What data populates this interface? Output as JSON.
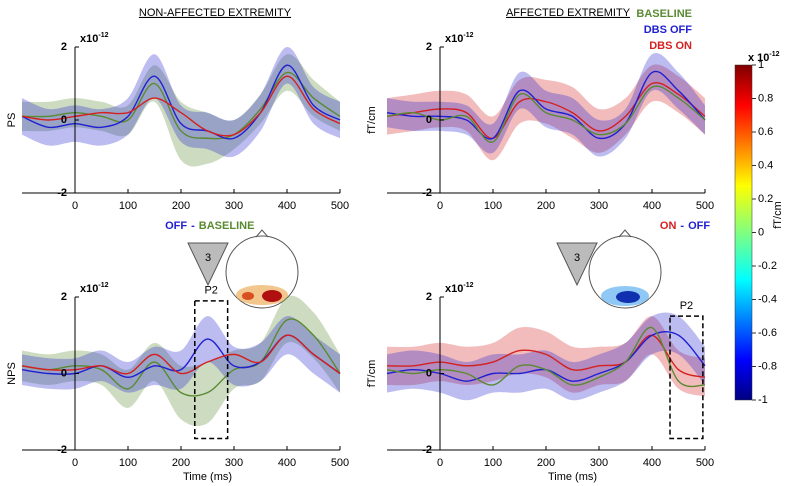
{
  "legend": [
    {
      "name": "BASELINE",
      "color": "#5a8a32"
    },
    {
      "name": "DBS OFF",
      "color": "#2020d0"
    },
    {
      "name": "DBS ON",
      "color": "#d42020"
    }
  ],
  "colorbar": {
    "lim": [
      -1,
      1
    ],
    "ticks": [
      1,
      0.8,
      0.6,
      0.4,
      0.2,
      0,
      -0.2,
      -0.4,
      -0.6,
      -0.8,
      -1
    ],
    "exponent": {
      "base": "x 10",
      "exp": "-12"
    },
    "label": "fT/cm"
  },
  "chart_data": [
    {
      "type": "line",
      "title": "NON-AFFECTED EXTREMITY",
      "row_label": "PS",
      "x": [
        -100,
        -50,
        0,
        50,
        100,
        150,
        200,
        250,
        300,
        350,
        400,
        450,
        500
      ],
      "xlim": [
        -100,
        500
      ],
      "xticks": [
        0,
        100,
        200,
        300,
        400,
        500
      ],
      "ylim": [
        -2,
        2
      ],
      "yticks": [
        -2,
        0,
        2
      ],
      "exponent": {
        "base": "x10",
        "exp": "-12"
      },
      "series": [
        {
          "color": "#5a8a32",
          "values": [
            0.1,
            0.1,
            0.2,
            0.1,
            0.0,
            1.0,
            -0.3,
            -0.5,
            -0.4,
            0.3,
            1.3,
            0.6,
            0.1
          ],
          "lower": [
            -0.3,
            -0.3,
            -0.2,
            -0.3,
            -0.4,
            0.5,
            -1.1,
            -1.2,
            -0.8,
            -0.1,
            0.8,
            0.1,
            -0.3
          ],
          "upper": [
            0.5,
            0.5,
            0.6,
            0.5,
            0.4,
            1.5,
            0.5,
            0.2,
            0.0,
            0.7,
            1.8,
            1.1,
            0.5
          ]
        },
        {
          "color": "#2020d0",
          "values": [
            0.1,
            -0.2,
            -0.1,
            -0.2,
            0.1,
            1.2,
            -0.1,
            -0.3,
            -0.5,
            0.2,
            1.5,
            0.4,
            0.0
          ],
          "lower": [
            -0.4,
            -0.7,
            -0.6,
            -0.7,
            -0.4,
            0.6,
            -0.6,
            -0.8,
            -1.0,
            -0.3,
            1.0,
            -0.1,
            -0.5
          ],
          "upper": [
            0.6,
            0.3,
            0.4,
            0.3,
            0.6,
            1.8,
            0.4,
            0.2,
            0.0,
            0.7,
            2.0,
            0.9,
            0.5
          ]
        },
        {
          "color": "#d42020",
          "values": [
            0.1,
            0.0,
            0.1,
            0.2,
            0.2,
            0.6,
            0.2,
            -0.3,
            -0.4,
            0.2,
            1.2,
            0.3,
            -0.1
          ]
        }
      ]
    },
    {
      "type": "line",
      "title": "AFFECTED EXTREMITY",
      "ylabel": "fT/cm",
      "x": [
        -100,
        -50,
        0,
        50,
        100,
        150,
        200,
        250,
        300,
        350,
        400,
        450,
        500
      ],
      "xlim": [
        -100,
        500
      ],
      "xticks": [
        0,
        100,
        200,
        300,
        400,
        500
      ],
      "ylim": [
        -2,
        2
      ],
      "yticks": [
        -2,
        0,
        2
      ],
      "exponent": {
        "base": "x10",
        "exp": "-12"
      },
      "series": [
        {
          "color": "#d42020",
          "values": [
            0.1,
            0.2,
            0.3,
            0.2,
            -0.5,
            0.5,
            0.5,
            0.2,
            -0.3,
            0.1,
            1.0,
            0.7,
            0.1
          ],
          "lower": [
            -0.4,
            -0.3,
            -0.2,
            -0.3,
            -1.1,
            -0.1,
            -0.1,
            -0.5,
            -0.9,
            -0.4,
            0.5,
            0.2,
            -0.4
          ],
          "upper": [
            0.6,
            0.7,
            0.8,
            0.7,
            0.1,
            1.1,
            1.1,
            0.9,
            0.3,
            0.6,
            1.5,
            1.2,
            0.6
          ]
        },
        {
          "color": "#2020d0",
          "values": [
            0.2,
            0.1,
            0.1,
            0.0,
            -0.5,
            0.8,
            0.3,
            0.1,
            -0.5,
            -0.1,
            1.3,
            0.8,
            0.0
          ],
          "lower": [
            -0.2,
            -0.3,
            -0.3,
            -0.4,
            -0.9,
            0.3,
            -0.2,
            -0.4,
            -1.0,
            -0.5,
            0.8,
            0.3,
            -0.4
          ],
          "upper": [
            0.6,
            0.5,
            0.5,
            0.4,
            -0.1,
            1.3,
            0.8,
            0.6,
            0.0,
            0.3,
            1.8,
            1.3,
            0.4
          ]
        },
        {
          "color": "#5a8a32",
          "values": [
            0.1,
            0.2,
            0.0,
            0.1,
            -0.6,
            0.7,
            0.2,
            0.0,
            -0.4,
            -0.1,
            0.9,
            0.6,
            0.0
          ]
        }
      ]
    },
    {
      "type": "line",
      "row_label": "NPS",
      "xlabel": "Time (ms)",
      "contrast": [
        {
          "text": "OFF",
          "color": "#2020d0"
        },
        {
          "text": "-",
          "color": "#2020d0"
        },
        {
          "text": "BASELINE",
          "color": "#5a8a32"
        }
      ],
      "channel": "3",
      "box": {
        "label": "P2",
        "x": [
          226,
          288
        ],
        "y": [
          -1.7,
          1.9
        ]
      },
      "x": [
        -100,
        -50,
        0,
        50,
        100,
        150,
        200,
        250,
        300,
        350,
        400,
        450,
        500
      ],
      "xlim": [
        -100,
        500
      ],
      "xticks": [
        0,
        100,
        200,
        300,
        400,
        500
      ],
      "ylim": [
        -2,
        2
      ],
      "yticks": [
        -2,
        0,
        2
      ],
      "exponent": {
        "base": "x10",
        "exp": "-12"
      },
      "series": [
        {
          "color": "#5a8a32",
          "values": [
            0.2,
            0.1,
            0.2,
            0.1,
            -0.4,
            0.3,
            -0.5,
            -0.5,
            0.1,
            0.3,
            1.4,
            1.0,
            0.0
          ],
          "lower": [
            -0.2,
            -0.3,
            -0.2,
            -0.3,
            -0.9,
            -0.2,
            -1.2,
            -1.3,
            -0.4,
            -0.2,
            0.8,
            0.4,
            -0.5
          ],
          "upper": [
            0.6,
            0.5,
            0.6,
            0.5,
            0.1,
            0.8,
            0.2,
            0.3,
            0.6,
            0.8,
            2.0,
            1.6,
            0.5
          ]
        },
        {
          "color": "#2020d0",
          "values": [
            0.1,
            0.0,
            0.0,
            0.2,
            -0.1,
            0.2,
            0.1,
            0.9,
            0.2,
            0.3,
            1.0,
            0.5,
            0.0
          ],
          "lower": [
            -0.3,
            -0.4,
            -0.4,
            -0.2,
            -0.5,
            -0.3,
            -0.4,
            0.3,
            -0.3,
            -0.2,
            0.5,
            0.0,
            -0.5
          ],
          "upper": [
            0.5,
            0.4,
            0.4,
            0.6,
            0.3,
            0.7,
            0.6,
            1.5,
            0.7,
            0.8,
            1.5,
            1.0,
            0.5
          ]
        },
        {
          "color": "#d42020",
          "values": [
            0.2,
            0.1,
            0.1,
            0.2,
            0.0,
            0.5,
            0.0,
            0.3,
            0.5,
            0.3,
            1.0,
            0.5,
            0.0
          ]
        }
      ]
    },
    {
      "type": "line",
      "ylabel": "fT/cm",
      "xlabel": "Time (ms)",
      "contrast": [
        {
          "text": "ON",
          "color": "#d42020"
        },
        {
          "text": "-",
          "color": "#2020d0"
        },
        {
          "text": "OFF",
          "color": "#2020d0"
        }
      ],
      "channel": "3",
      "box": {
        "label": "P2",
        "x": [
          434,
          496
        ],
        "y": [
          -1.7,
          1.5
        ]
      },
      "x": [
        -100,
        -50,
        0,
        50,
        100,
        150,
        200,
        250,
        300,
        350,
        400,
        450,
        500
      ],
      "xlim": [
        -100,
        500
      ],
      "xticks": [
        0,
        100,
        200,
        300,
        400,
        500
      ],
      "ylim": [
        -2,
        2
      ],
      "yticks": [
        -2,
        0,
        2
      ],
      "exponent": {
        "base": "x10",
        "exp": "-12"
      },
      "series": [
        {
          "color": "#d42020",
          "values": [
            0.2,
            0.2,
            0.3,
            0.2,
            0.3,
            0.6,
            0.5,
            0.1,
            0.2,
            0.3,
            1.0,
            0.1,
            -0.1
          ],
          "lower": [
            -0.3,
            -0.3,
            -0.2,
            -0.3,
            -0.2,
            0.0,
            -0.1,
            -0.5,
            -0.3,
            -0.2,
            0.5,
            -0.4,
            -0.6
          ],
          "upper": [
            0.7,
            0.7,
            0.8,
            0.7,
            0.8,
            1.2,
            1.1,
            0.7,
            0.7,
            0.8,
            1.5,
            0.6,
            0.4
          ]
        },
        {
          "color": "#2020d0",
          "values": [
            0.0,
            0.1,
            0.0,
            -0.2,
            0.0,
            0.0,
            0.1,
            -0.2,
            0.0,
            0.3,
            1.0,
            1.0,
            0.2
          ],
          "lower": [
            -0.5,
            -0.4,
            -0.5,
            -0.7,
            -0.5,
            -0.5,
            -0.4,
            -0.7,
            -0.5,
            -0.2,
            0.5,
            0.5,
            -0.3
          ],
          "upper": [
            0.5,
            0.6,
            0.5,
            0.3,
            0.5,
            0.5,
            0.6,
            0.3,
            0.5,
            0.8,
            1.5,
            1.5,
            0.7
          ]
        },
        {
          "color": "#5a8a32",
          "values": [
            0.1,
            0.0,
            0.1,
            0.0,
            -0.3,
            0.2,
            0.1,
            -0.3,
            -0.1,
            0.3,
            1.2,
            -0.2,
            -0.3
          ]
        }
      ]
    }
  ]
}
